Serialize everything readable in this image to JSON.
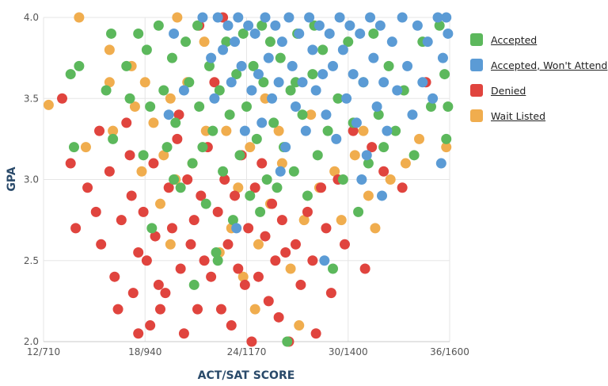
{
  "chart_data": {
    "type": "scatter",
    "title": "",
    "xlabel": "ACT/SAT SCORE",
    "ylabel": "GPA",
    "xlim": [
      12,
      36
    ],
    "ylim": [
      2.0,
      4.0
    ],
    "x_ticks": [
      {
        "value": 12,
        "label": "12/710"
      },
      {
        "value": 18,
        "label": "18/940"
      },
      {
        "value": 24,
        "label": "24/1170"
      },
      {
        "value": 30,
        "label": "30/1400"
      },
      {
        "value": 36,
        "label": "36/1600"
      }
    ],
    "y_ticks": [
      {
        "value": 2.0,
        "label": "2.0"
      },
      {
        "value": 2.5,
        "label": "2.5"
      },
      {
        "value": 3.0,
        "label": "3.0"
      },
      {
        "value": 3.5,
        "label": "3.5"
      },
      {
        "value": 4.0,
        "label": "4.0"
      }
    ],
    "grid": true,
    "legend_position": "right",
    "series": [
      {
        "name": "Wait Listed",
        "color": "#f0ad4e",
        "points": [
          [
            12.3,
            3.46
          ],
          [
            14.1,
            4.0
          ],
          [
            14.5,
            3.2
          ],
          [
            15.9,
            3.8
          ],
          [
            15.9,
            3.6
          ],
          [
            16.1,
            3.3
          ],
          [
            17.2,
            3.7
          ],
          [
            17.4,
            3.45
          ],
          [
            18,
            3.6
          ],
          [
            18.5,
            3.35
          ],
          [
            19.5,
            3.5
          ],
          [
            19.9,
            4.0
          ],
          [
            20.5,
            3.6
          ],
          [
            19.8,
            3.0
          ],
          [
            18.9,
            2.85
          ],
          [
            19.5,
            2.6
          ],
          [
            20.8,
            3.1
          ],
          [
            21.6,
            3.3
          ],
          [
            22.4,
            2.55
          ],
          [
            23.1,
            2.7
          ],
          [
            23.5,
            2.95
          ],
          [
            24.2,
            3.2
          ],
          [
            24.5,
            2.2
          ],
          [
            23.8,
            2.4
          ],
          [
            24.7,
            2.6
          ],
          [
            25.4,
            2.85
          ],
          [
            26.1,
            3.1
          ],
          [
            25.9,
            3.3
          ],
          [
            27.1,
            2.1
          ],
          [
            27.4,
            2.75
          ],
          [
            28.3,
            2.95
          ],
          [
            29.2,
            3.05
          ],
          [
            29.6,
            2.75
          ],
          [
            30.4,
            3.15
          ],
          [
            31.2,
            2.9
          ],
          [
            31.6,
            2.7
          ],
          [
            32.5,
            3.0
          ],
          [
            33.4,
            3.1
          ],
          [
            34.2,
            3.25
          ],
          [
            35.8,
            3.2
          ],
          [
            22.8,
            3.3
          ],
          [
            25.1,
            3.5
          ],
          [
            21.5,
            3.85
          ],
          [
            27.8,
            3.4
          ],
          [
            26.6,
            2.45
          ],
          [
            19.1,
            3.15
          ],
          [
            17.8,
            3.05
          ],
          [
            30.9,
            3.3
          ]
        ]
      },
      {
        "name": "Denied",
        "color": "#e0443e",
        "points": [
          [
            13.1,
            3.5
          ],
          [
            13.6,
            3.1
          ],
          [
            13.9,
            2.7
          ],
          [
            14.6,
            2.95
          ],
          [
            15.1,
            2.8
          ],
          [
            15.4,
            2.6
          ],
          [
            15.9,
            3.05
          ],
          [
            16.2,
            2.4
          ],
          [
            16.4,
            2.2
          ],
          [
            16.6,
            2.75
          ],
          [
            16.9,
            3.35
          ],
          [
            17.1,
            3.15
          ],
          [
            17.2,
            2.9
          ],
          [
            17.3,
            2.3
          ],
          [
            17.6,
            2.55
          ],
          [
            17.9,
            2.8
          ],
          [
            18.1,
            2.5
          ],
          [
            18.3,
            2.1
          ],
          [
            18.5,
            3.1
          ],
          [
            18.6,
            2.65
          ],
          [
            18.9,
            2.2
          ],
          [
            19.2,
            2.3
          ],
          [
            19.4,
            2.95
          ],
          [
            19.6,
            2.7
          ],
          [
            19.9,
            3.25
          ],
          [
            20.1,
            2.45
          ],
          [
            20.3,
            2.05
          ],
          [
            20.5,
            3.0
          ],
          [
            20.7,
            2.6
          ],
          [
            20.9,
            2.75
          ],
          [
            21.1,
            2.2
          ],
          [
            21.3,
            2.9
          ],
          [
            21.5,
            2.5
          ],
          [
            21.7,
            3.2
          ],
          [
            21.9,
            2.4
          ],
          [
            22.1,
            3.6
          ],
          [
            22.3,
            2.8
          ],
          [
            22.5,
            2.2
          ],
          [
            22.7,
            3.0
          ],
          [
            22.9,
            2.6
          ],
          [
            23.1,
            2.1
          ],
          [
            23.3,
            2.9
          ],
          [
            23.5,
            2.45
          ],
          [
            23.7,
            3.15
          ],
          [
            23.9,
            2.35
          ],
          [
            24.1,
            2.7
          ],
          [
            24.3,
            2.0
          ],
          [
            24.5,
            2.95
          ],
          [
            24.7,
            2.4
          ],
          [
            24.9,
            3.1
          ],
          [
            25.1,
            2.65
          ],
          [
            25.3,
            2.25
          ],
          [
            25.5,
            2.85
          ],
          [
            25.7,
            2.5
          ],
          [
            25.9,
            2.15
          ],
          [
            26.1,
            2.75
          ],
          [
            26.3,
            2.55
          ],
          [
            26.5,
            2.0
          ],
          [
            26.9,
            2.6
          ],
          [
            27.2,
            2.35
          ],
          [
            27.6,
            2.8
          ],
          [
            27.9,
            2.5
          ],
          [
            28.1,
            2.05
          ],
          [
            28.4,
            2.95
          ],
          [
            28.7,
            2.7
          ],
          [
            29.0,
            2.3
          ],
          [
            29.4,
            3.0
          ],
          [
            29.8,
            2.6
          ],
          [
            30.3,
            3.3
          ],
          [
            31.0,
            2.45
          ],
          [
            31.4,
            3.2
          ],
          [
            32.1,
            3.05
          ],
          [
            33.2,
            2.95
          ],
          [
            34.6,
            3.6
          ],
          [
            21.2,
            3.95
          ],
          [
            22.6,
            4.0
          ],
          [
            20.0,
            3.4
          ],
          [
            18.8,
            2.35
          ],
          [
            17.6,
            2.05
          ],
          [
            15.3,
            3.3
          ]
        ]
      },
      {
        "name": "Accepted",
        "color": "#5cb85c",
        "points": [
          [
            13.6,
            3.65
          ],
          [
            13.8,
            3.2
          ],
          [
            14.1,
            3.7
          ],
          [
            15.7,
            3.55
          ],
          [
            16.0,
            3.9
          ],
          [
            16.1,
            3.25
          ],
          [
            16.9,
            3.7
          ],
          [
            17.1,
            3.5
          ],
          [
            17.6,
            3.9
          ],
          [
            17.9,
            3.15
          ],
          [
            18.1,
            3.8
          ],
          [
            18.3,
            3.45
          ],
          [
            18.4,
            2.7
          ],
          [
            18.8,
            3.95
          ],
          [
            19.1,
            3.55
          ],
          [
            19.3,
            3.2
          ],
          [
            19.6,
            3.75
          ],
          [
            19.8,
            3.35
          ],
          [
            20.1,
            2.95
          ],
          [
            20.4,
            3.85
          ],
          [
            20.6,
            3.6
          ],
          [
            20.8,
            3.1
          ],
          [
            21.1,
            3.95
          ],
          [
            21.2,
            3.45
          ],
          [
            21.4,
            3.2
          ],
          [
            21.6,
            2.85
          ],
          [
            21.8,
            3.7
          ],
          [
            22.0,
            3.3
          ],
          [
            22.2,
            2.55
          ],
          [
            22.4,
            3.55
          ],
          [
            22.6,
            3.05
          ],
          [
            22.8,
            3.85
          ],
          [
            23.0,
            3.4
          ],
          [
            23.2,
            2.75
          ],
          [
            23.4,
            3.65
          ],
          [
            23.6,
            3.15
          ],
          [
            23.8,
            3.9
          ],
          [
            24.0,
            3.45
          ],
          [
            24.2,
            2.9
          ],
          [
            24.4,
            3.7
          ],
          [
            24.6,
            3.25
          ],
          [
            24.8,
            2.8
          ],
          [
            25.0,
            3.6
          ],
          [
            25.2,
            3.0
          ],
          [
            25.4,
            3.85
          ],
          [
            25.6,
            3.35
          ],
          [
            25.8,
            2.95
          ],
          [
            26.0,
            3.75
          ],
          [
            26.2,
            3.2
          ],
          [
            26.4,
            2.0
          ],
          [
            26.6,
            3.55
          ],
          [
            26.8,
            3.05
          ],
          [
            27.0,
            3.9
          ],
          [
            27.3,
            3.4
          ],
          [
            27.6,
            2.9
          ],
          [
            27.9,
            3.65
          ],
          [
            28.2,
            3.15
          ],
          [
            28.5,
            3.8
          ],
          [
            28.8,
            3.3
          ],
          [
            29.1,
            2.45
          ],
          [
            29.4,
            3.5
          ],
          [
            29.7,
            3.0
          ],
          [
            30.0,
            3.85
          ],
          [
            30.3,
            3.35
          ],
          [
            30.6,
            2.8
          ],
          [
            30.9,
            3.6
          ],
          [
            31.2,
            3.1
          ],
          [
            31.5,
            3.9
          ],
          [
            31.8,
            3.4
          ],
          [
            32.1,
            3.2
          ],
          [
            32.4,
            3.7
          ],
          [
            32.8,
            3.3
          ],
          [
            33.3,
            3.55
          ],
          [
            33.9,
            3.15
          ],
          [
            34.4,
            3.85
          ],
          [
            34.9,
            3.45
          ],
          [
            35.4,
            3.95
          ],
          [
            35.7,
            3.65
          ],
          [
            35.9,
            3.45
          ],
          [
            35.8,
            3.25
          ],
          [
            28.0,
            3.95
          ],
          [
            26.9,
            3.6
          ],
          [
            24.9,
            3.95
          ],
          [
            22.3,
            2.5
          ],
          [
            20.9,
            2.35
          ],
          [
            19.7,
            3.0
          ]
        ]
      },
      {
        "name": "Accepted, Won't Attend",
        "color": "#5b9bd5",
        "points": [
          [
            19.4,
            3.4
          ],
          [
            19.7,
            3.9
          ],
          [
            20.3,
            3.55
          ],
          [
            21.4,
            4.0
          ],
          [
            21.9,
            3.75
          ],
          [
            22.1,
            3.5
          ],
          [
            22.3,
            4.0
          ],
          [
            22.6,
            3.8
          ],
          [
            22.9,
            3.95
          ],
          [
            23.1,
            3.6
          ],
          [
            23.3,
            3.85
          ],
          [
            23.5,
            4.0
          ],
          [
            23.7,
            3.7
          ],
          [
            23.9,
            3.3
          ],
          [
            24.1,
            3.95
          ],
          [
            24.3,
            3.55
          ],
          [
            24.5,
            3.9
          ],
          [
            24.7,
            3.65
          ],
          [
            24.9,
            3.35
          ],
          [
            25.1,
            4.0
          ],
          [
            25.3,
            3.75
          ],
          [
            25.5,
            3.5
          ],
          [
            25.7,
            3.95
          ],
          [
            25.9,
            3.6
          ],
          [
            26.1,
            3.85
          ],
          [
            26.3,
            3.2
          ],
          [
            26.5,
            4.0
          ],
          [
            26.7,
            3.7
          ],
          [
            26.9,
            3.45
          ],
          [
            27.1,
            3.9
          ],
          [
            27.3,
            3.6
          ],
          [
            27.5,
            3.3
          ],
          [
            27.7,
            4.0
          ],
          [
            27.9,
            3.8
          ],
          [
            28.1,
            3.55
          ],
          [
            28.3,
            3.95
          ],
          [
            28.5,
            3.65
          ],
          [
            28.7,
            3.4
          ],
          [
            28.9,
            3.9
          ],
          [
            29.1,
            3.7
          ],
          [
            29.3,
            3.25
          ],
          [
            29.5,
            4.0
          ],
          [
            29.7,
            3.8
          ],
          [
            29.9,
            3.5
          ],
          [
            30.1,
            3.95
          ],
          [
            30.3,
            3.65
          ],
          [
            30.5,
            3.35
          ],
          [
            30.7,
            3.9
          ],
          [
            30.9,
            3.6
          ],
          [
            31.1,
            3.15
          ],
          [
            31.3,
            4.0
          ],
          [
            31.5,
            3.75
          ],
          [
            31.7,
            3.45
          ],
          [
            31.9,
            3.95
          ],
          [
            32.1,
            3.6
          ],
          [
            32.3,
            3.3
          ],
          [
            32.6,
            3.85
          ],
          [
            32.9,
            3.55
          ],
          [
            33.2,
            4.0
          ],
          [
            33.5,
            3.7
          ],
          [
            33.8,
            3.4
          ],
          [
            34.1,
            3.95
          ],
          [
            34.4,
            3.6
          ],
          [
            34.7,
            3.85
          ],
          [
            35.0,
            3.5
          ],
          [
            35.3,
            4.0
          ],
          [
            35.6,
            3.75
          ],
          [
            35.8,
            4.0
          ],
          [
            35.9,
            3.9
          ],
          [
            35.5,
            3.1
          ],
          [
            32.0,
            2.9
          ],
          [
            28.6,
            2.5
          ],
          [
            26.0,
            3.05
          ],
          [
            23.4,
            2.7
          ],
          [
            30.8,
            3.0
          ]
        ]
      }
    ]
  },
  "legend": {
    "items": [
      {
        "label": "Accepted",
        "color": "#5cb85c"
      },
      {
        "label": "Accepted, Won't Attend",
        "color": "#5b9bd5"
      },
      {
        "label": "Denied",
        "color": "#e0443e"
      },
      {
        "label": "Wait Listed",
        "color": "#f0ad4e"
      }
    ]
  }
}
